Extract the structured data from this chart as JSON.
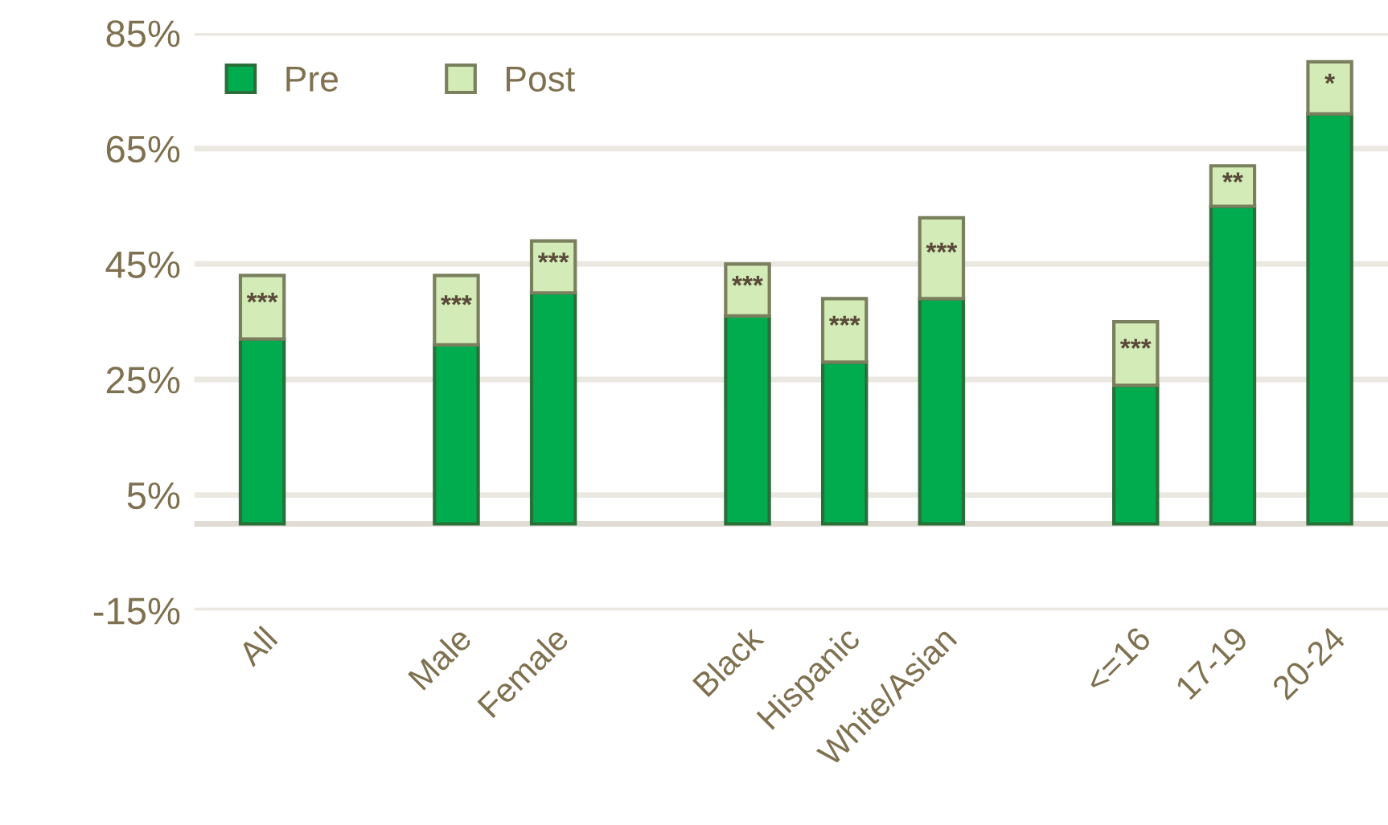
{
  "chart_data": {
    "type": "bar",
    "stacked": true,
    "categories": [
      "All",
      null,
      "Male",
      "Female",
      null,
      "Black",
      "Hispanic",
      "White/Asian",
      null,
      "<=16",
      "17-19",
      "20-24"
    ],
    "series": [
      {
        "name": "Pre",
        "color": "#00ac4e",
        "values": [
          32,
          null,
          31,
          40,
          null,
          36,
          28,
          39,
          null,
          24,
          55,
          71
        ]
      },
      {
        "name": "Post",
        "color": "#d3ecb7",
        "values": [
          11,
          null,
          12,
          9,
          null,
          9,
          11,
          14,
          null,
          11,
          7,
          9
        ]
      }
    ],
    "ylim": [
      -15,
      85
    ],
    "yticks": [
      {
        "value": -15,
        "label": "-15%"
      },
      {
        "value": 5,
        "label": "5%"
      },
      {
        "value": 25,
        "label": "25%"
      },
      {
        "value": 45,
        "label": "45%"
      },
      {
        "value": 65,
        "label": "65%"
      },
      {
        "value": 85,
        "label": "85%"
      }
    ],
    "grid": "y",
    "legend": "top left",
    "annotations": [
      "***",
      "***",
      "***",
      "***",
      "***",
      "***",
      "***",
      "**",
      "*"
    ]
  }
}
